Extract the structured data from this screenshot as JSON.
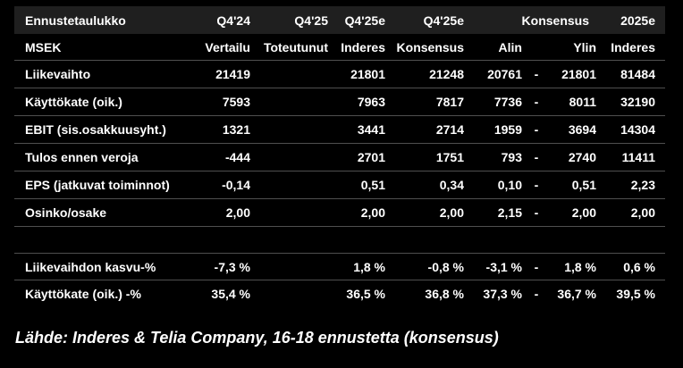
{
  "table": {
    "header1": {
      "title": "Ennustetaulukko",
      "q424": "Q4'24",
      "q425": "Q4'25",
      "q425e_inderes": "Q4'25e",
      "q425e_konsensus": "Q4'25e",
      "konsensus_range": "Konsensus",
      "y2025e": "2025e"
    },
    "header2": {
      "label": "MSEK",
      "vertailu": "Vertailu",
      "toteutunut": "Toteutunut",
      "inderes": "Inderes",
      "konsensus": "Konsensus",
      "alin": "Alin",
      "ylin": "Ylin",
      "inderes_2025": "Inderes"
    },
    "rows": [
      {
        "label": "Liikevaihto",
        "vertailu": "21419",
        "toteutunut": "",
        "inderes": "21801",
        "konsensus": "21248",
        "alin": "20761",
        "dash": "-",
        "ylin": "21801",
        "inderes_2025": "81484"
      },
      {
        "label": "Käyttökate (oik.)",
        "vertailu": "7593",
        "toteutunut": "",
        "inderes": "7963",
        "konsensus": "7817",
        "alin": "7736",
        "dash": "-",
        "ylin": "8011",
        "inderes_2025": "32190"
      },
      {
        "label": "EBIT (sis.osakkuusyht.)",
        "vertailu": "1321",
        "toteutunut": "",
        "inderes": "3441",
        "konsensus": "2714",
        "alin": "1959",
        "dash": "-",
        "ylin": "3694",
        "inderes_2025": "14304"
      },
      {
        "label": "Tulos ennen veroja",
        "vertailu": "-444",
        "toteutunut": "",
        "inderes": "2701",
        "konsensus": "1751",
        "alin": "793",
        "dash": "-",
        "ylin": "2740",
        "inderes_2025": "11411"
      },
      {
        "label": "EPS (jatkuvat toiminnot)",
        "vertailu": "-0,14",
        "toteutunut": "",
        "inderes": "0,51",
        "konsensus": "0,34",
        "alin": "0,10",
        "dash": "-",
        "ylin": "0,51",
        "inderes_2025": "2,23"
      },
      {
        "label": "Osinko/osake",
        "vertailu": "2,00",
        "toteutunut": "",
        "inderes": "2,00",
        "konsensus": "2,00",
        "alin": "2,15",
        "dash": "-",
        "ylin": "2,00",
        "inderes_2025": "2,00"
      },
      {
        "label": "Liikevaihdon kasvu-%",
        "vertailu": "-7,3 %",
        "toteutunut": "",
        "inderes": "1,8 %",
        "konsensus": "-0,8 %",
        "alin": "-3,1 %",
        "dash": "-",
        "ylin": "1,8 %",
        "inderes_2025": "0,6 %"
      },
      {
        "label": "Käyttökate (oik.) -%",
        "vertailu": "35,4 %",
        "toteutunut": "",
        "inderes": "36,5 %",
        "konsensus": "36,8 %",
        "alin": "37,3 %",
        "dash": "-",
        "ylin": "36,7 %",
        "inderes_2025": "39,5 %"
      }
    ]
  },
  "footer": {
    "source": "Lähde: Inderes & Telia Company, 16-18 ennustetta (konsensus)"
  },
  "colors": {
    "background": "#000000",
    "header_background": "#1f1f1f",
    "divider": "#4f4f4f",
    "text": "#ffffff"
  },
  "chart_data": {
    "type": "table",
    "title": "Ennustetaulukko",
    "unit": "MSEK",
    "columns": [
      "MSEK",
      "Q4'24 Vertailu",
      "Q4'25 Toteutunut",
      "Q4'25e Inderes",
      "Q4'25e Konsensus",
      "Konsensus Alin",
      "Konsensus Ylin",
      "2025e Inderes"
    ],
    "rows": [
      [
        "Liikevaihto",
        "21419",
        "",
        "21801",
        "21248",
        "20761",
        "21801",
        "81484"
      ],
      [
        "Käyttökate (oik.)",
        "7593",
        "",
        "7963",
        "7817",
        "7736",
        "8011",
        "32190"
      ],
      [
        "EBIT (sis.osakkuusyht.)",
        "1321",
        "",
        "3441",
        "2714",
        "1959",
        "3694",
        "14304"
      ],
      [
        "Tulos ennen veroja",
        "-444",
        "",
        "2701",
        "1751",
        "793",
        "2740",
        "11411"
      ],
      [
        "EPS (jatkuvat toiminnot)",
        "-0,14",
        "",
        "0,51",
        "0,34",
        "0,10",
        "0,51",
        "2,23"
      ],
      [
        "Osinko/osake",
        "2,00",
        "",
        "2,00",
        "2,00",
        "2,15",
        "2,00",
        "2,00"
      ],
      [
        "Liikevaihdon kasvu-%",
        "-7,3 %",
        "",
        "1,8 %",
        "-0,8 %",
        "-3,1 %",
        "1,8 %",
        "0,6 %"
      ],
      [
        "Käyttökate (oik.) -%",
        "35,4 %",
        "",
        "36,5 %",
        "36,8 %",
        "37,3 %",
        "36,7 %",
        "39,5 %"
      ]
    ],
    "annotations": [
      "Lähde: Inderes & Telia Company, 16-18 ennustetta (konsensus)"
    ]
  }
}
